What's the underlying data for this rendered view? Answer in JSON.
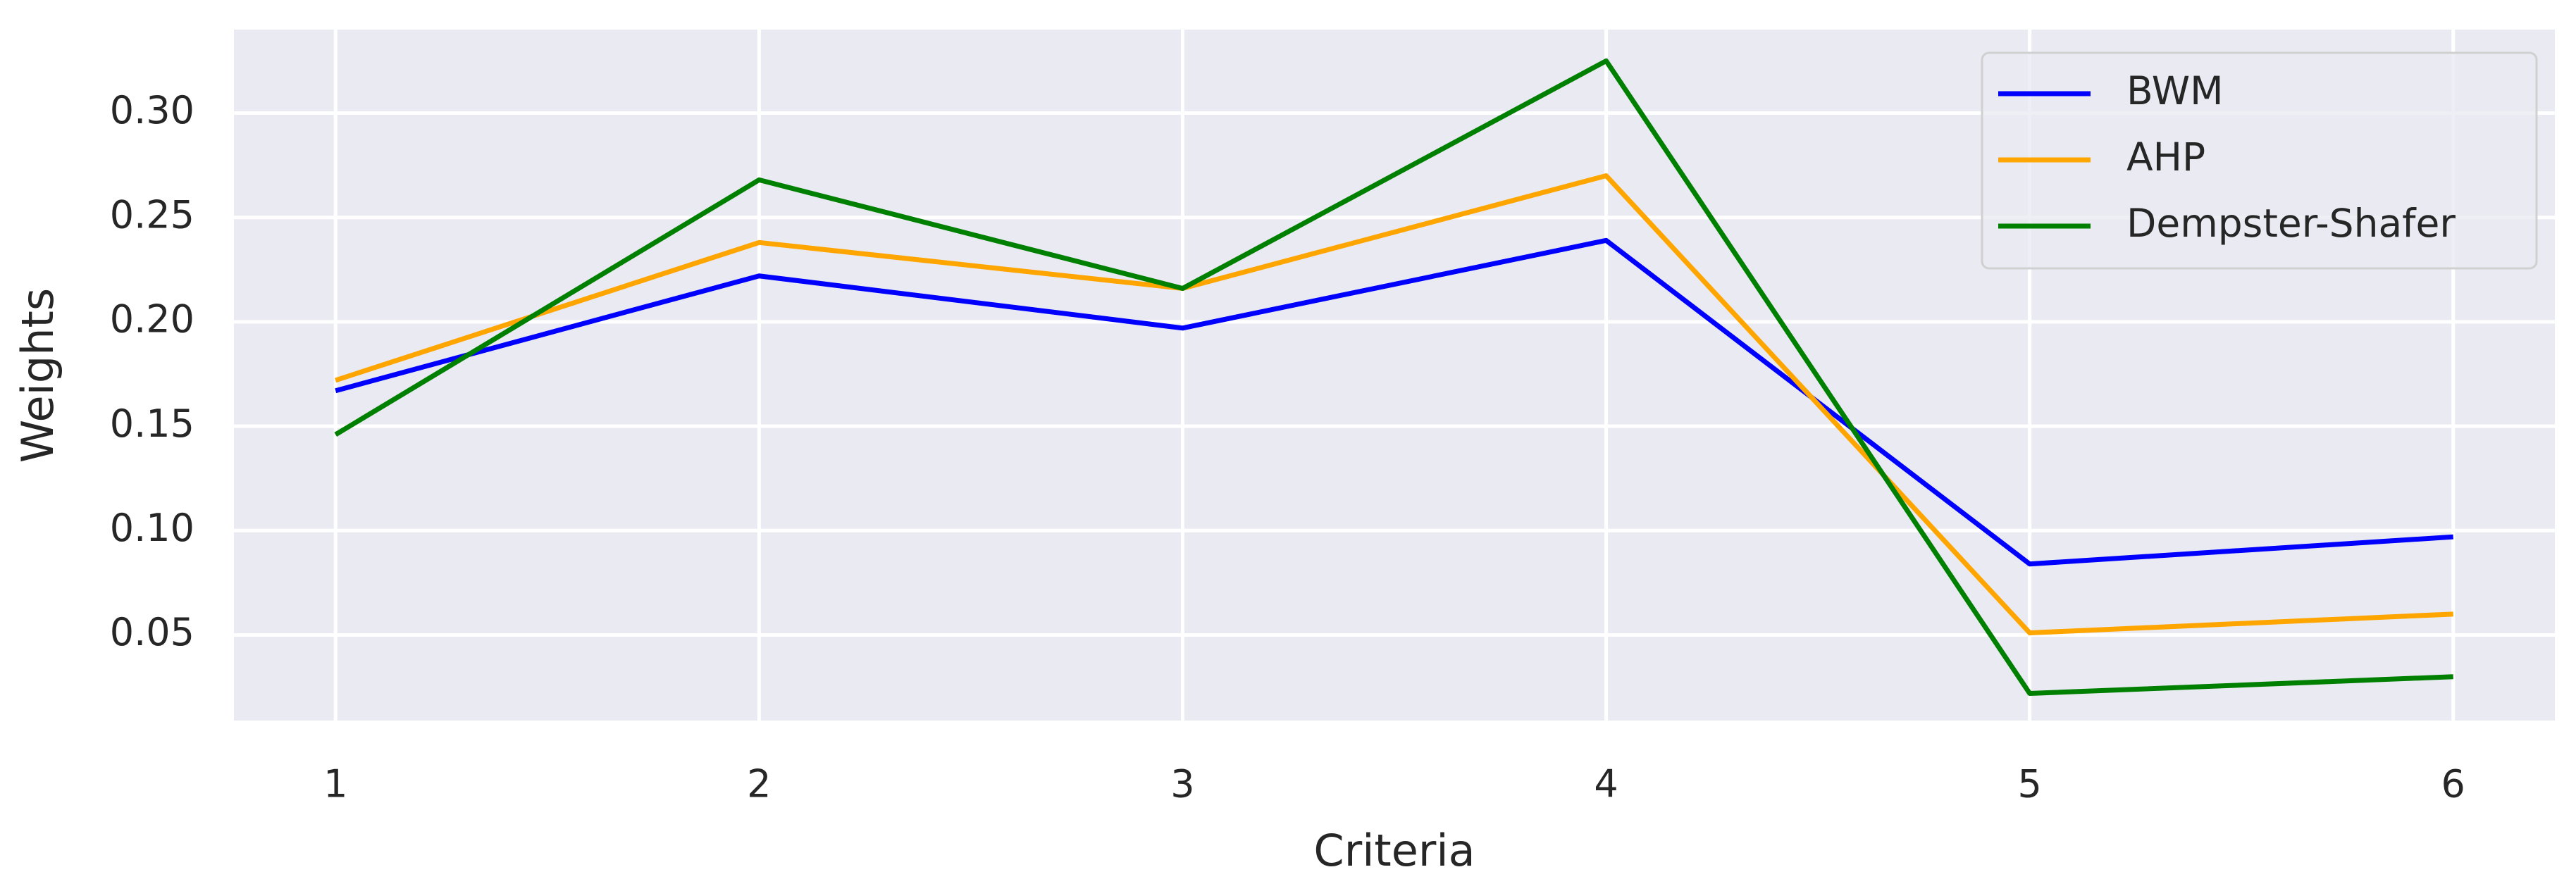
{
  "chart_data": {
    "type": "line",
    "x_label": "Criteria",
    "y_label": "Weights",
    "x": [
      1,
      2,
      3,
      4,
      5,
      6
    ],
    "series": [
      {
        "name": "BWM",
        "color": "#0000ff",
        "values": [
          0.167,
          0.222,
          0.197,
          0.239,
          0.084,
          0.097
        ]
      },
      {
        "name": "AHP",
        "color": "#ffa500",
        "values": [
          0.172,
          0.238,
          0.216,
          0.27,
          0.051,
          0.06
        ]
      },
      {
        "name": "Dempster-Shafer",
        "color": "#008000",
        "values": [
          0.146,
          0.268,
          0.216,
          0.325,
          0.022,
          0.03
        ]
      }
    ],
    "xlim": [
      0.76,
      6.24
    ],
    "ylim": [
      0.009,
      0.34
    ],
    "xticks": [
      1,
      2,
      3,
      4,
      5,
      6
    ],
    "yticks": [
      0.05,
      {
        "value": 0.1,
        "label": "0.10"
      },
      0.15,
      {
        "value": 0.2,
        "label": "0.20"
      },
      0.25,
      {
        "value": 0.3,
        "label": "0.30"
      }
    ],
    "grid": true,
    "legend": "upper right"
  }
}
